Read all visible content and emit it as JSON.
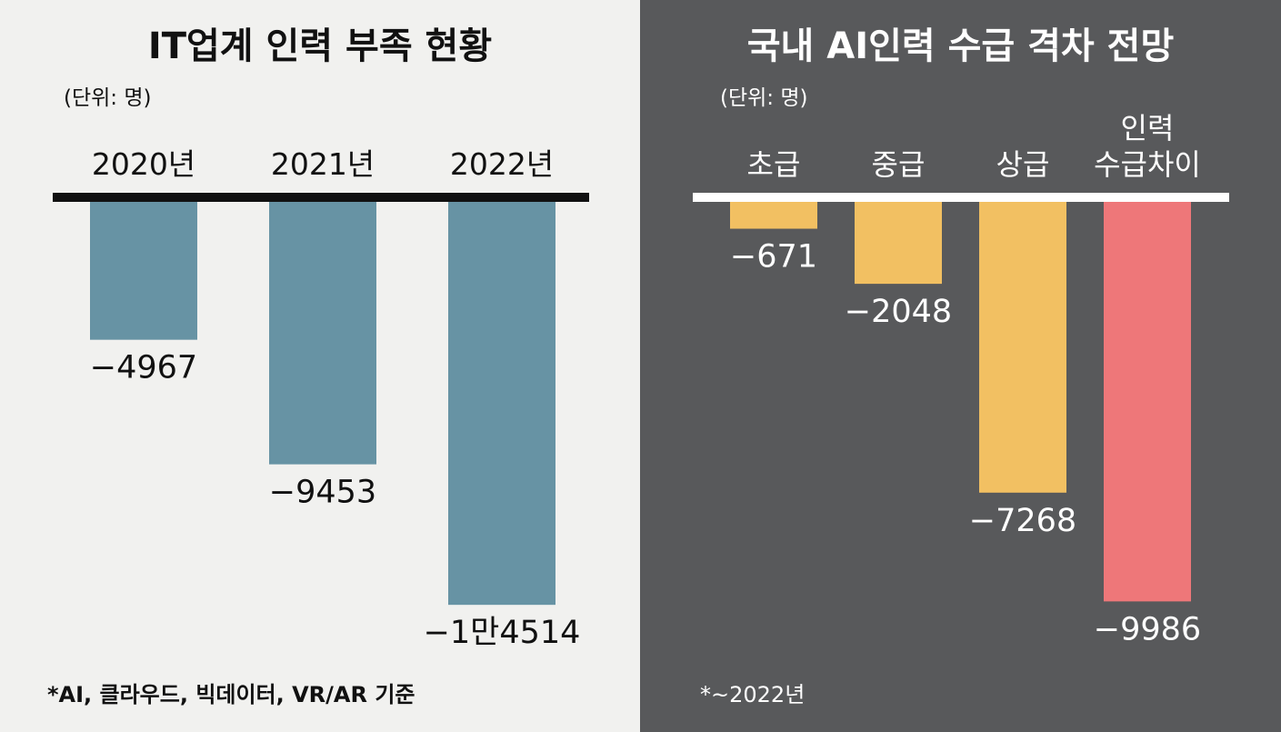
{
  "chart_data": [
    {
      "type": "bar",
      "title": "IT업계 인력 부족 현황",
      "unit_label": "(단위: 명)",
      "categories": [
        "2020년",
        "2021년",
        "2022년"
      ],
      "values": [
        -4967,
        -9453,
        -14514
      ],
      "data_labels": [
        "−4967",
        "−9453",
        "−1만4514"
      ],
      "footnote": "*AI, 클라우드, 빅데이터, VR/AR 기준",
      "ylim": [
        -15000,
        0
      ],
      "bar_color": "#6793a4",
      "baseline_color": "#111111"
    },
    {
      "type": "bar",
      "title": "국내 AI인력 수급 격차 전망",
      "unit_label": "(단위: 명)",
      "categories": [
        "초급",
        "중급",
        "상급",
        "인력\n수급차이"
      ],
      "values": [
        -671,
        -2048,
        -7268,
        -9986
      ],
      "data_labels": [
        "−671",
        "−2048",
        "−7268",
        "−9986"
      ],
      "footnote": "*~2022년",
      "ylim": [
        -10000,
        0
      ],
      "bar_colors": [
        "#f2c062",
        "#f2c062",
        "#f2c062",
        "#ee7779"
      ],
      "baseline_color": "#ffffff"
    }
  ]
}
